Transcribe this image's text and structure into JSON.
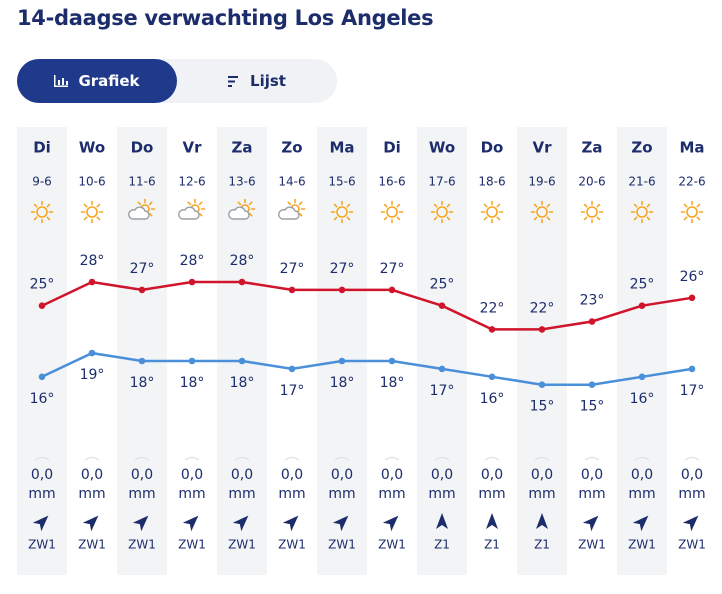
{
  "title": "14-daagse verwachting Los Angeles",
  "tabs": [
    "Grafiek",
    "Lijst"
  ],
  "forecast": {
    "days": [
      "Di",
      "Wo",
      "Do",
      "Vr",
      "Za",
      "Zo",
      "Ma",
      "Di",
      "Wo",
      "Do",
      "Vr",
      "Za",
      "Zo",
      "Ma"
    ],
    "dates": [
      "9-6",
      "10-6",
      "11-6",
      "12-6",
      "13-6",
      "14-6",
      "15-6",
      "16-6",
      "17-6",
      "18-6",
      "19-6",
      "20-6",
      "21-6",
      "22-6"
    ],
    "icons": [
      "sun",
      "sun",
      "partly-cloudy",
      "partly-cloudy",
      "partly-cloudy",
      "partly-cloudy",
      "sun",
      "sun",
      "sun",
      "sun",
      "sun",
      "sun",
      "sun",
      "sun"
    ],
    "max": {
      "color": "#d0142c",
      "values": [
        25,
        28,
        27,
        28,
        28,
        27,
        27,
        27,
        25,
        22,
        22,
        23,
        25,
        26
      ],
      "value_labels": [
        "25°",
        "28°",
        "27°",
        "28°",
        "28°",
        "27°",
        "27°",
        "27°",
        "25°",
        "22°",
        "22°",
        "23°",
        "25°",
        "26°"
      ]
    },
    "min": {
      "color": "#4a8fd9",
      "values": [
        16,
        19,
        18,
        18,
        18,
        17,
        18,
        18,
        17,
        16,
        15,
        15,
        16,
        17
      ],
      "value_labels": [
        "16°",
        "19°",
        "18°",
        "18°",
        "18°",
        "17°",
        "18°",
        "18°",
        "17°",
        "16°",
        "15°",
        "15°",
        "16°",
        "17°"
      ]
    },
    "precipitation": {
      "values": [
        0,
        0,
        0,
        0,
        0,
        0,
        0,
        0,
        0,
        0,
        0,
        0,
        0,
        0
      ],
      "value_labels": [
        "0,0",
        "0,0",
        "0,0",
        "0,0",
        "0,0",
        "0,0",
        "0,0",
        "0,0",
        "0,0",
        "0,0",
        "0,0",
        "0,0",
        "0,0",
        "0,0"
      ],
      "unit": "mm"
    },
    "wind": [
      "ZW1",
      "ZW1",
      "ZW1",
      "ZW1",
      "ZW1",
      "ZW1",
      "ZW1",
      "ZW1",
      "Z1",
      "Z1",
      "Z1",
      "ZW1",
      "ZW1",
      "ZW1"
    ]
  }
}
